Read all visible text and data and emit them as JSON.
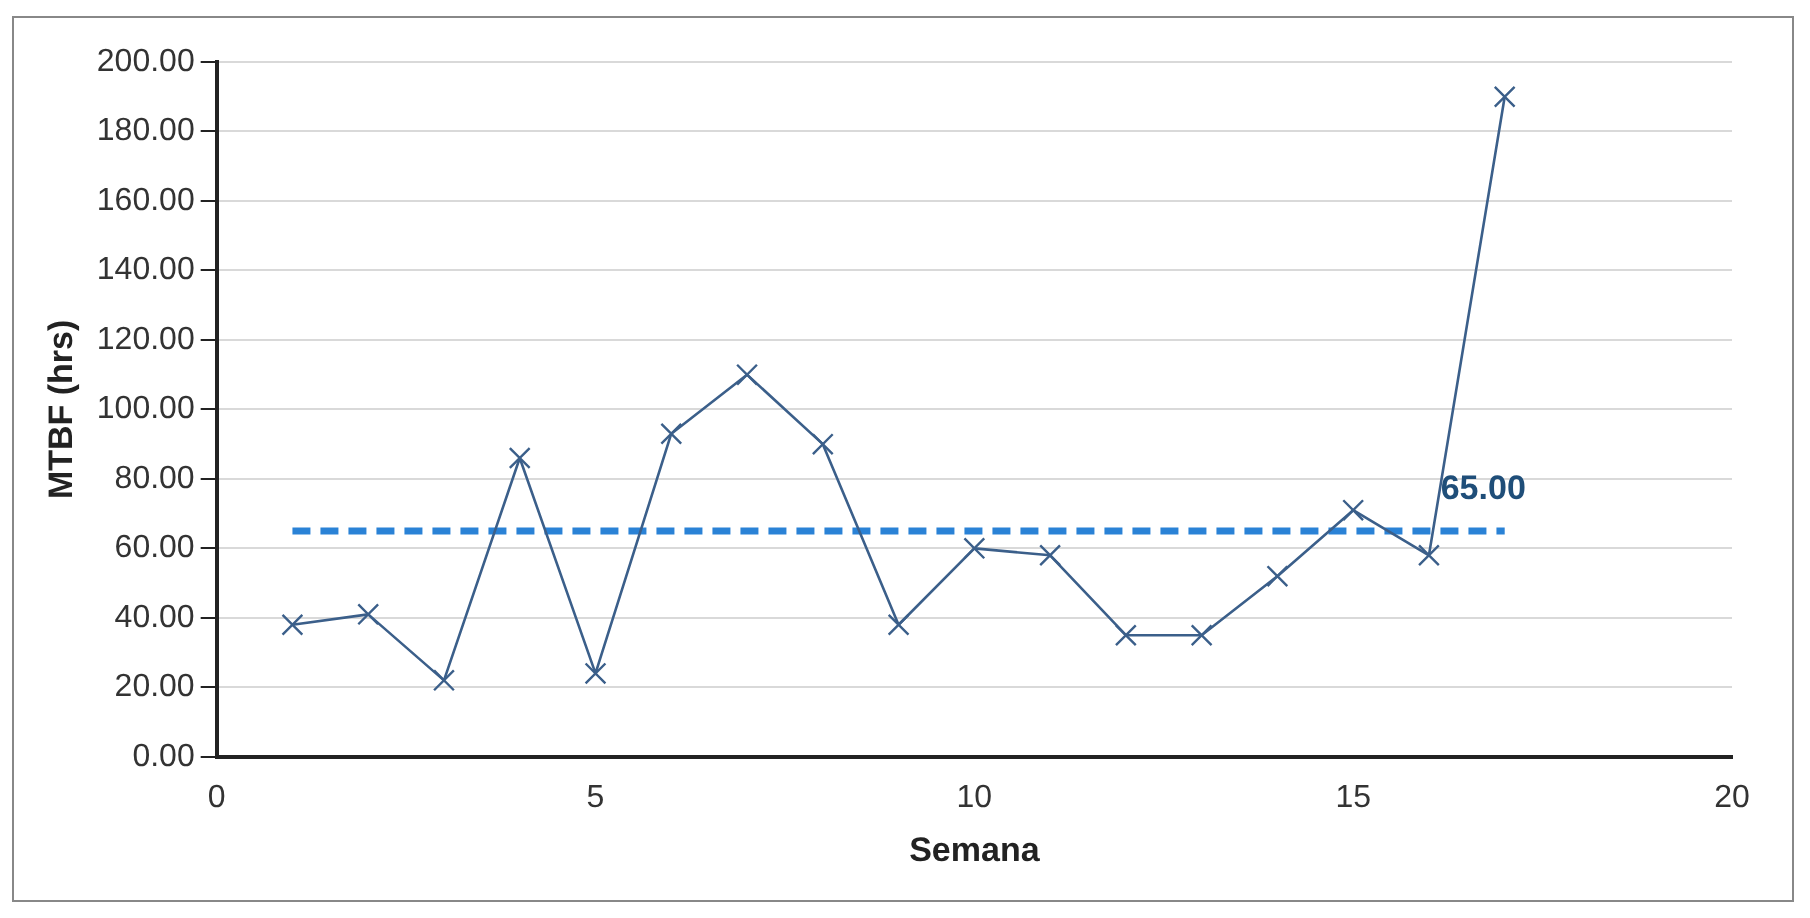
{
  "chart_data": {
    "type": "line",
    "xlabel": "Semana",
    "ylabel": "MTBF (hrs)",
    "xlim": [
      0,
      20
    ],
    "xticks": [
      0,
      5,
      10,
      15,
      20
    ],
    "ylim": [
      0,
      200
    ],
    "yticks": [
      {
        "value": 0,
        "label": "0.00"
      },
      {
        "value": 20,
        "label": "20.00"
      },
      {
        "value": 40,
        "label": "40.00"
      },
      {
        "value": 60,
        "label": "60.00"
      },
      {
        "value": 80,
        "label": "80.00"
      },
      {
        "value": 100,
        "label": "100.00"
      },
      {
        "value": 120,
        "label": "120.00"
      },
      {
        "value": 140,
        "label": "140.00"
      },
      {
        "value": 160,
        "label": "160.00"
      },
      {
        "value": 180,
        "label": "180.00"
      },
      {
        "value": 200,
        "label": "200.00"
      }
    ],
    "grid": "y",
    "legend": false,
    "series": [
      {
        "color": "#3b5f8a",
        "marker": "cross",
        "line_style": "solid",
        "x": [
          1,
          2,
          3,
          4,
          5,
          6,
          7,
          8,
          9,
          10,
          11,
          12,
          13,
          14,
          15,
          16,
          17
        ],
        "values": [
          38,
          41,
          22,
          86,
          24,
          93,
          110,
          90,
          38,
          60,
          58,
          35,
          35,
          52,
          71,
          58,
          190
        ]
      },
      {
        "color": "#2a82d6",
        "marker": "none",
        "line_style": "dashed",
        "x": [
          1,
          17
        ],
        "values": [
          65,
          65
        ],
        "value_labels": [
          null,
          "65.00"
        ]
      }
    ]
  }
}
